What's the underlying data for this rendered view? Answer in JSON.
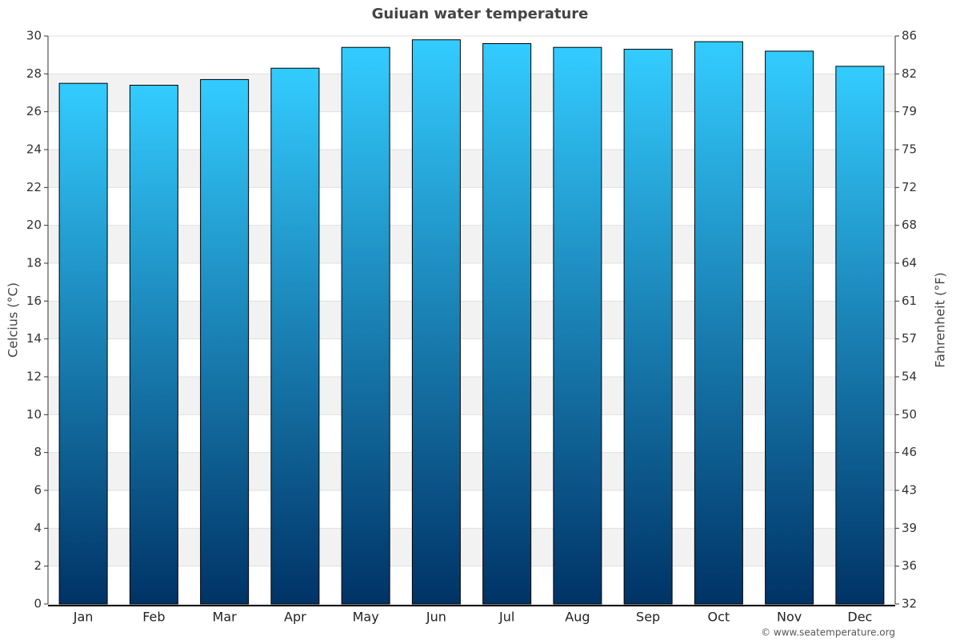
{
  "chart_data": {
    "type": "bar",
    "title": "Guiuan water temperature",
    "y_label": "Celcius (°C)",
    "y2_label": "Fahrenheit (°F)",
    "credit": "© www.seatemperature.org",
    "categories": [
      "Jan",
      "Feb",
      "Mar",
      "Apr",
      "May",
      "Jun",
      "Jul",
      "Aug",
      "Sep",
      "Oct",
      "Nov",
      "Dec"
    ],
    "values": [
      27.5,
      27.4,
      27.7,
      28.3,
      29.4,
      29.8,
      29.6,
      29.4,
      29.3,
      29.7,
      29.2,
      28.4
    ],
    "gradient": [
      "#33ccff",
      "#003366"
    ],
    "ylim": [
      0,
      30
    ],
    "yticks": [
      0,
      2,
      4,
      6,
      8,
      10,
      12,
      14,
      16,
      18,
      20,
      22,
      24,
      26,
      28,
      30
    ],
    "y2lim": [
      32,
      86
    ],
    "y2ticks": [
      32,
      {
        "value": 35.6,
        "label": "36"
      },
      {
        "value": 39.2,
        "label": "39"
      },
      {
        "value": 42.8,
        "label": "43"
      },
      {
        "value": 46.4,
        "label": "46"
      },
      50,
      {
        "value": 53.6,
        "label": "54"
      },
      {
        "value": 57.2,
        "label": "57"
      },
      {
        "value": 60.8,
        "label": "61"
      },
      {
        "value": 64.4,
        "label": "64"
      },
      68,
      {
        "value": 71.6,
        "label": "72"
      },
      {
        "value": 75.2,
        "label": "75"
      },
      {
        "value": 78.8,
        "label": "79"
      },
      {
        "value": 82.4,
        "label": "82"
      },
      86
    ],
    "grid": true
  }
}
